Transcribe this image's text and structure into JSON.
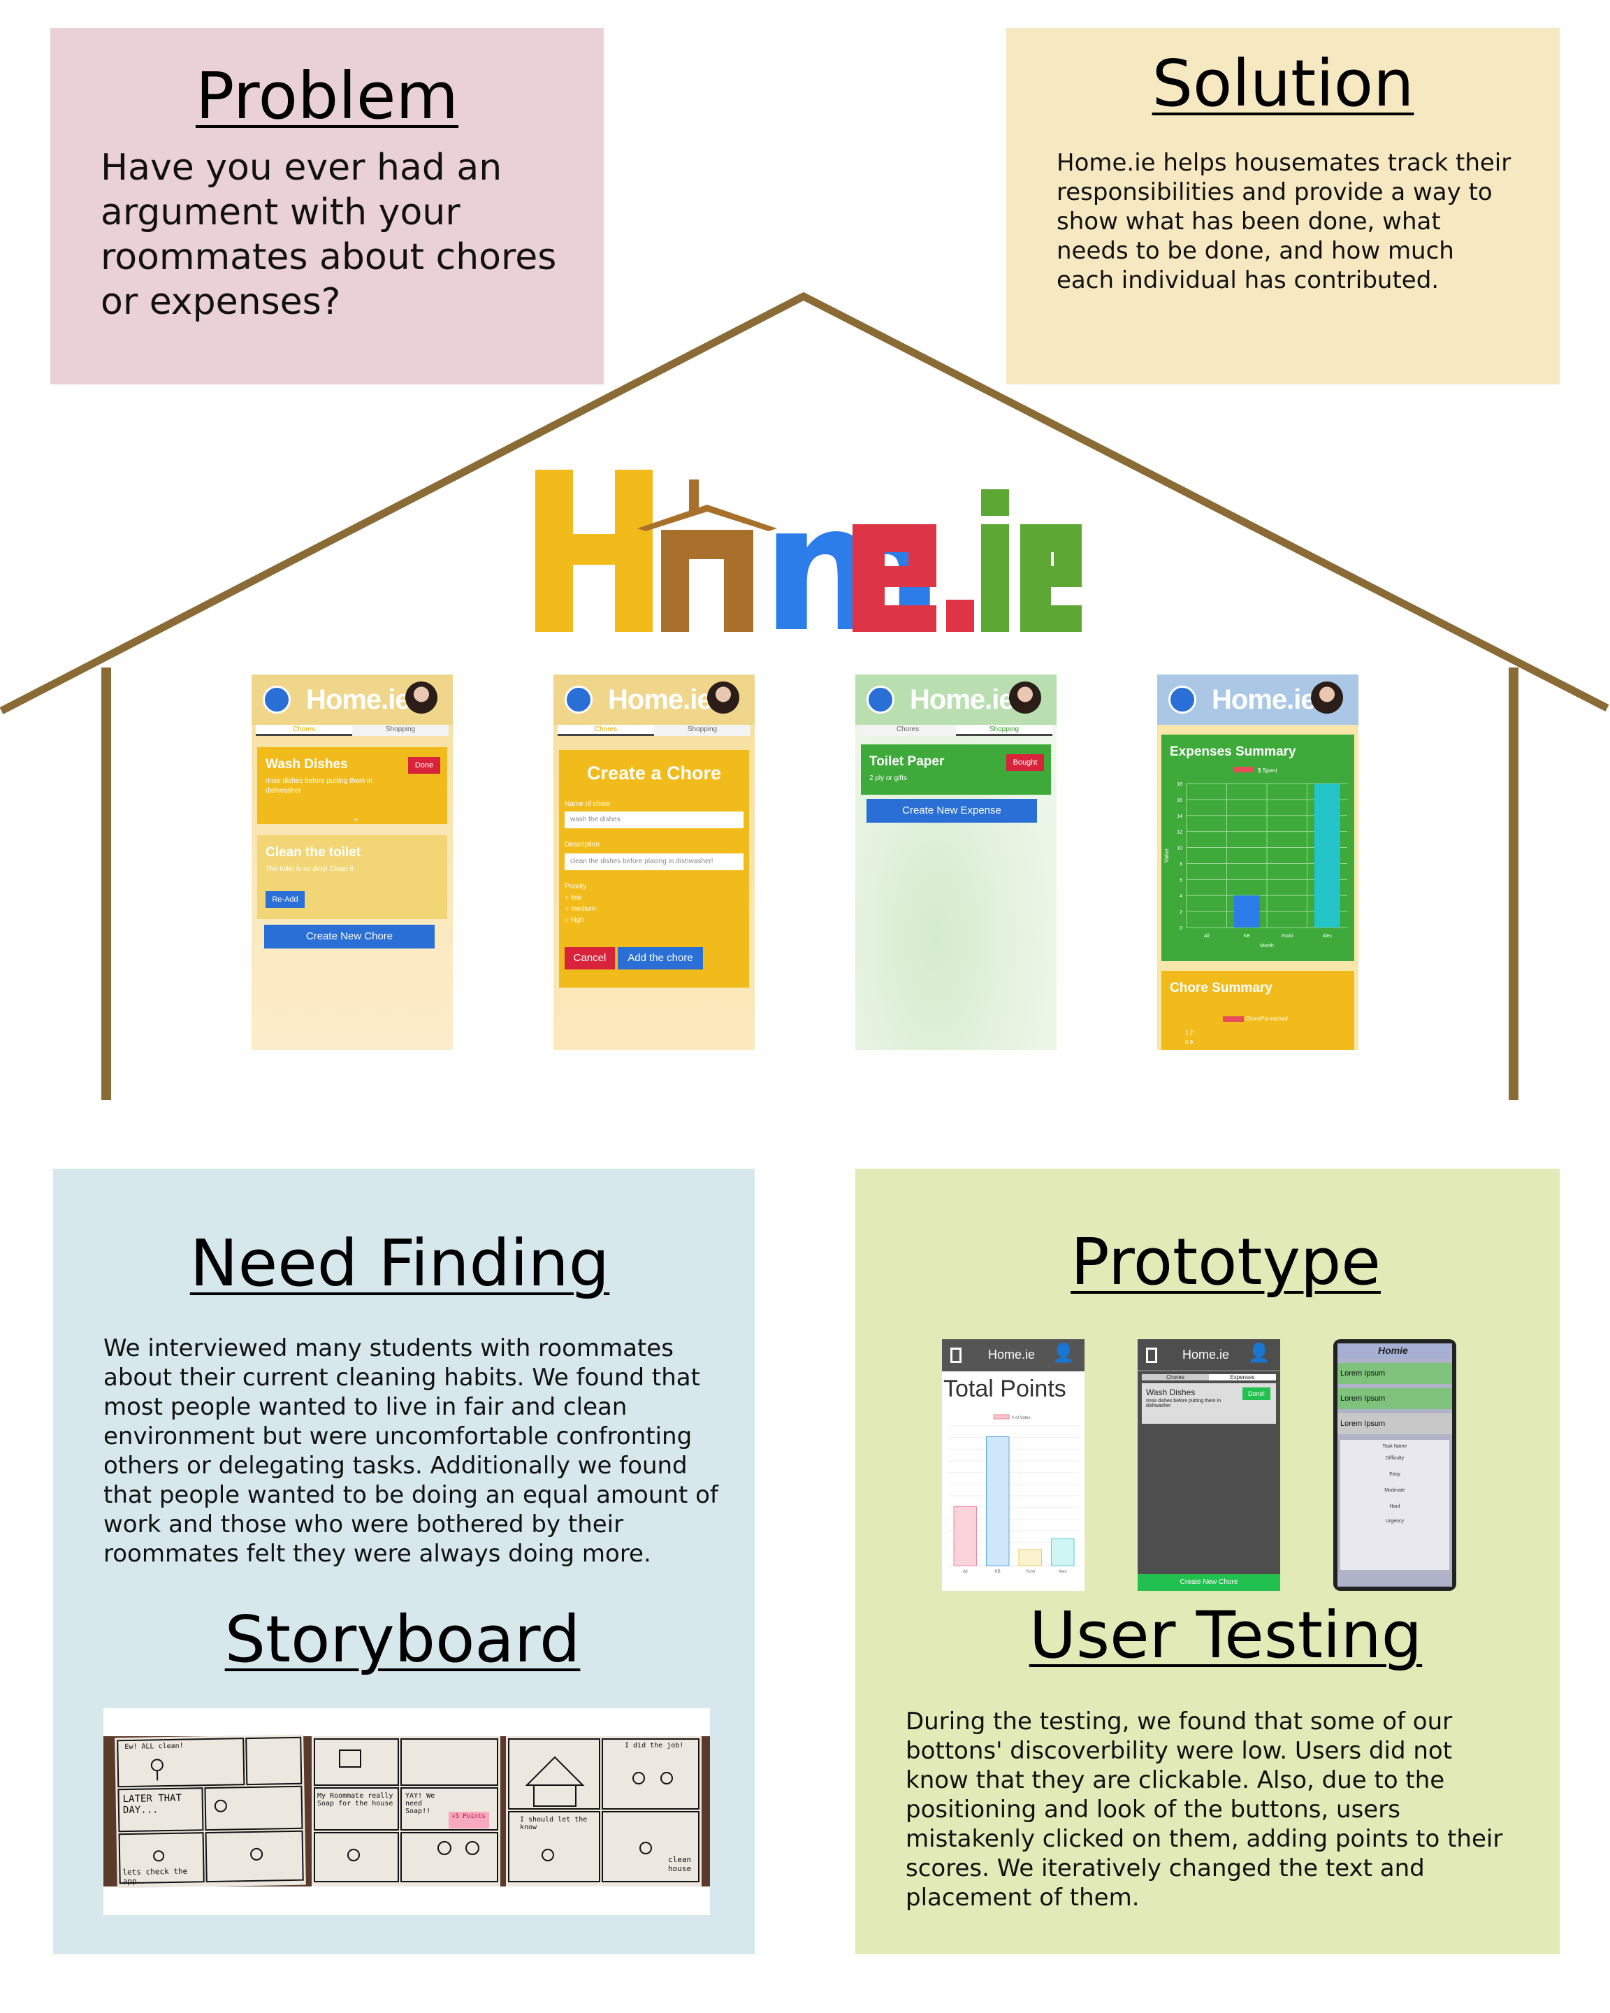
{
  "problem": {
    "title": "Problem",
    "text": "Have you ever had an argument with your roommates about chores or expenses?"
  },
  "solution": {
    "title": "Solution",
    "text": "Home.ie helps housemates track their responsibilities and provide a way to show what has been done, what needs to be done, and how much each individual has contributed."
  },
  "logo": {
    "text": "Home.ie",
    "letters": [
      "H",
      "m",
      "e",
      ".",
      "i",
      "e"
    ]
  },
  "screens": {
    "app_name": "Home.ie",
    "tab_chores": "Chores",
    "tab_shopping": "Shopping",
    "s1": {
      "card1_title": "Wash Dishes",
      "card1_desc": "rinse dishes before putting them in dishwasher",
      "card1_btn": "Done",
      "card2_title": "Clean the toilet",
      "card2_desc": "The toilet is so dirty! Clean it",
      "card2_btn": "Re-Add",
      "create_btn": "Create New Chore"
    },
    "s2": {
      "title": "Create a Chore",
      "name_label": "Name of chore",
      "name_value": "wash the dishes",
      "desc_label": "Description",
      "desc_value": "clean the dishes before placing in dishwasher!",
      "priority_label": "Priority",
      "options": [
        "low",
        "medium",
        "high"
      ],
      "cancel_btn": "Cancel",
      "add_btn": "Add the chore"
    },
    "s3": {
      "card_title": "Toilet Paper",
      "card_desc": "2 ply or gifts",
      "card_btn": "Bought",
      "create_btn": "Create New Expense"
    },
    "s4": {
      "expenses_title": "Expenses Summary",
      "legend": "$ Spent",
      "ylabel": "Value",
      "xlabel": "Month",
      "yticks": [
        "18",
        "16",
        "14",
        "12",
        "10",
        "8",
        "6",
        "4",
        "2",
        "0"
      ],
      "categories": [
        "All",
        "KB",
        "Youki",
        "Alex"
      ],
      "chore_title": "Chore Summary",
      "chore_legend": "ChorePts earned",
      "chore_ticks": [
        "1.2",
        "0.9"
      ]
    }
  },
  "chart_data": {
    "type": "bar",
    "title": "Expenses Summary",
    "xlabel": "Month",
    "ylabel": "Value",
    "categories": [
      "All",
      "KB",
      "Youki",
      "Alex"
    ],
    "series": [
      {
        "name": "$ Spent",
        "values": [
          0,
          4,
          0,
          18
        ]
      }
    ],
    "ylim": [
      0,
      18
    ]
  },
  "need_finding": {
    "title": "Need Finding",
    "text": "We interviewed many students with roommates about their current cleaning habits. We found that most people wanted to live in fair and clean environment but were uncomfortable confronting others or delegating tasks. Additionally we found that people wanted to be doing an equal amount of work and those who were bothered by their roommates felt they were always doing more."
  },
  "storyboard": {
    "title": "Storyboard",
    "panel1": [
      "Ew! ALL clean!",
      "LATER THAT DAY...",
      "lets check the app..."
    ],
    "panel2": [
      "My Roommate really Soap for the house",
      "YAY! We need Soap!!",
      "+5 Points"
    ],
    "panel3": [
      "I did the job!",
      "I should let the know",
      "clean house"
    ]
  },
  "prototype": {
    "title": "Prototype",
    "p1_app": "Home.ie",
    "p1_title": "Total Points",
    "p1_legend": "# of Votes",
    "p1_categories": [
      "All",
      "KB",
      "Yumi",
      "Alex"
    ],
    "p1_values": [
      11,
      24,
      3,
      5
    ],
    "p2_app": "Home.ie",
    "p2_tabs": [
      "Chores",
      "Expenses"
    ],
    "p2_card_title": "Wash Dishes",
    "p2_card_desc": "rinse dishes before putting them in dishwasher",
    "p2_card_btn": "Done!",
    "p2_create": "Create New Chore",
    "p3_app": "Homie",
    "p3_items": [
      "Lorem Ipsum",
      "Lorem Ipsum",
      "Lorem Ipsum"
    ],
    "p3_form": [
      "Task Name",
      "Difficulty",
      "Easy",
      "Moderate",
      "Hard",
      "Urgency"
    ]
  },
  "user_testing": {
    "title": "User Testing",
    "text": "During the testing, we found that some of our bottons' discoverbility were low. Users did not know that they are clickable. Also, due to the positioning and look of the buttons, users mistakenly clicked on them, adding points to their scores. We iteratively changed the text and placement of them."
  },
  "colors": {
    "problem_bg": "#e9d1d7",
    "solution_bg": "#f6e9c2",
    "need_bg": "#d7e8ec",
    "proto_bg": "#e2eab8",
    "roof": "#8b6b35",
    "logo_yellow": "#f2bb1c",
    "logo_brown": "#a9702b",
    "logo_blue": "#2c7cea",
    "logo_red": "#dd3546",
    "logo_green": "#5da834"
  }
}
